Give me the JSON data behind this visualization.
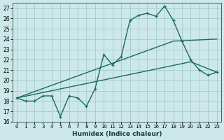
{
  "xlabel": "Humidex (Indice chaleur)",
  "xlim": [
    -0.5,
    23.5
  ],
  "ylim": [
    16,
    27.5
  ],
  "xticks": [
    0,
    1,
    2,
    3,
    4,
    5,
    6,
    7,
    8,
    9,
    10,
    11,
    12,
    13,
    14,
    15,
    16,
    17,
    18,
    19,
    20,
    21,
    22,
    23
  ],
  "yticks": [
    16,
    17,
    18,
    19,
    20,
    21,
    22,
    23,
    24,
    25,
    26,
    27
  ],
  "bg_color": "#cce8e8",
  "grid_color": "#aacece",
  "line_color": "#1a6b5a",
  "line1_x": [
    0,
    1,
    2,
    3,
    4,
    5,
    6,
    7,
    8,
    9,
    10,
    11,
    12,
    13,
    14,
    15,
    16,
    17,
    18,
    19,
    20,
    21,
    22,
    23
  ],
  "line1_y": [
    18.3,
    18.0,
    18.0,
    18.5,
    18.5,
    16.5,
    18.5,
    18.3,
    17.5,
    19.2,
    22.5,
    21.5,
    22.3,
    25.8,
    26.3,
    26.5,
    26.2,
    27.2,
    25.8,
    23.8,
    22.0,
    21.0,
    20.5,
    20.8
  ],
  "line2_x": [
    0,
    18,
    23
  ],
  "line2_y": [
    18.3,
    23.8,
    24.0
  ],
  "line3_x": [
    0,
    20,
    23
  ],
  "line3_y": [
    18.3,
    21.8,
    20.8
  ]
}
